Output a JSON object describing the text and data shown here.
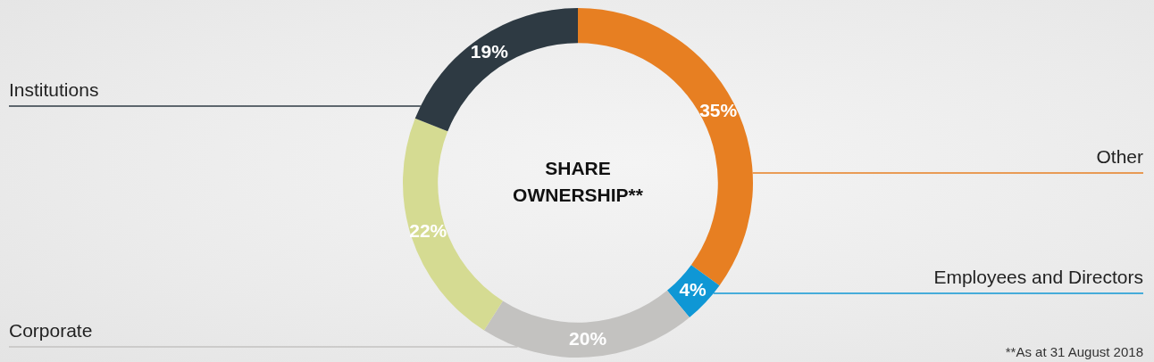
{
  "chart_data": {
    "type": "donut",
    "title": "SHARE OWNERSHIP**",
    "categories": [
      "Other",
      "Employees and Directors",
      "Corporate",
      null,
      "Institutions"
    ],
    "values": [
      35,
      4,
      20,
      22,
      19
    ],
    "colors": [
      "#e77f22",
      "#0f97d5",
      "#c3c2c0",
      "#d5db92",
      "#2e3a43"
    ],
    "value_labels": [
      "35%",
      "4%",
      "20%",
      "22%",
      "19%"
    ],
    "annotations": [
      "**As at 31 August 2018"
    ]
  }
}
